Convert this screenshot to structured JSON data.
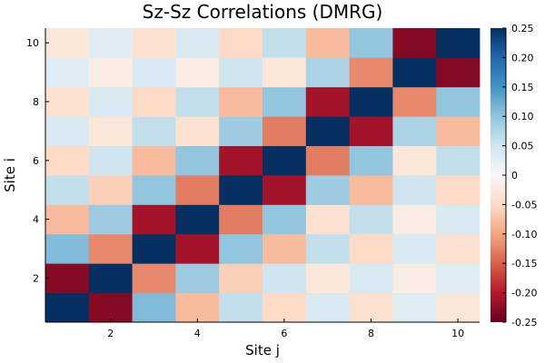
{
  "chart_data": {
    "type": "heatmap",
    "title": "Sz-Sz Correlations (DMRG)",
    "xlabel": "Site j",
    "ylabel": "Site i",
    "x": [
      1,
      2,
      3,
      4,
      5,
      6,
      7,
      8,
      9,
      10
    ],
    "y": [
      1,
      2,
      3,
      4,
      5,
      6,
      7,
      8,
      9,
      10
    ],
    "xticks": [
      "2",
      "4",
      "6",
      "8",
      "10"
    ],
    "yticks": [
      "2",
      "4",
      "6",
      "8",
      "10"
    ],
    "values": [
      [
        0.25,
        -0.23,
        0.11,
        -0.08,
        0.06,
        -0.05,
        0.04,
        -0.04,
        0.03,
        -0.03
      ],
      [
        -0.23,
        0.25,
        -0.12,
        0.09,
        -0.06,
        0.05,
        -0.03,
        0.04,
        -0.02,
        0.03
      ],
      [
        0.11,
        -0.12,
        0.25,
        -0.21,
        0.1,
        -0.08,
        0.06,
        -0.05,
        0.04,
        -0.04
      ],
      [
        -0.08,
        0.09,
        -0.21,
        0.25,
        -0.13,
        0.1,
        -0.04,
        0.06,
        -0.02,
        0.04
      ],
      [
        0.06,
        -0.06,
        0.1,
        -0.13,
        0.25,
        -0.21,
        0.09,
        -0.08,
        0.05,
        -0.05
      ],
      [
        -0.05,
        0.05,
        -0.08,
        0.1,
        -0.21,
        0.25,
        -0.13,
        0.1,
        -0.03,
        0.06
      ],
      [
        0.04,
        -0.03,
        0.06,
        -0.04,
        0.09,
        -0.13,
        0.25,
        -0.21,
        0.08,
        -0.08
      ],
      [
        -0.04,
        0.04,
        -0.05,
        0.06,
        -0.08,
        0.1,
        -0.21,
        0.25,
        -0.12,
        0.1
      ],
      [
        0.03,
        -0.02,
        0.04,
        -0.02,
        0.05,
        -0.03,
        0.08,
        -0.12,
        0.25,
        -0.23
      ],
      [
        -0.03,
        0.03,
        -0.04,
        0.04,
        -0.05,
        0.06,
        -0.08,
        0.1,
        -0.23,
        0.25
      ]
    ],
    "clim": [
      -0.25,
      0.25
    ],
    "colorbar_ticks": [
      "0.25",
      "0.20",
      "0.15",
      "0.10",
      "0.05",
      "0",
      "-0.05",
      "-0.10",
      "-0.15",
      "-0.20",
      "-0.25"
    ],
    "colorbar_values": [
      0.25,
      0.2,
      0.15,
      0.1,
      0.05,
      0,
      -0.05,
      -0.1,
      -0.15,
      -0.2,
      -0.25
    ],
    "colormap": {
      "name": "RdBu",
      "stops": [
        "#67001f",
        "#b2182b",
        "#d6604d",
        "#f4a582",
        "#fddbc7",
        "#f7f7f7",
        "#d1e5f0",
        "#92c5de",
        "#4393c3",
        "#2166ac",
        "#053061"
      ]
    },
    "grid": false
  }
}
